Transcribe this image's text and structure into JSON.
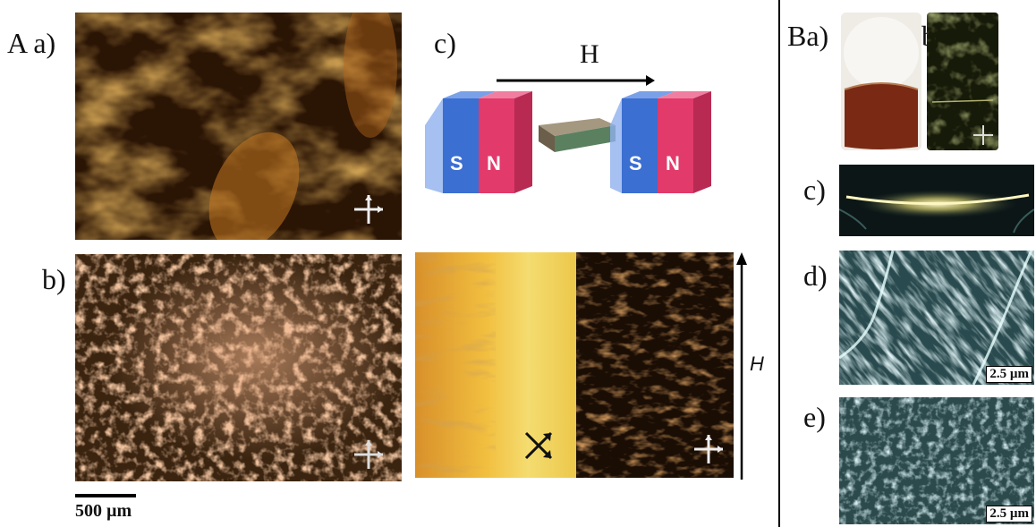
{
  "figure": {
    "group_a_letter": "A",
    "group_b_letter": "B",
    "labels": {
      "aa": "a)",
      "ab": "b)",
      "ac": "c)",
      "ba": "a)",
      "bb": "b)",
      "bc": "c)",
      "bd": "d)",
      "be": "e)"
    },
    "magnet_field_label": "H",
    "magnet_letters": {
      "s": "S",
      "n": "N"
    },
    "field_axis_label": "H",
    "scale_bar_main": "500 µm",
    "scale_bar_d": "2.5 µm",
    "scale_bar_e": "2.5 µm"
  },
  "colors": {
    "magnet_blue": "#3b6fd1",
    "magnet_red": "#e23a6a",
    "orange_texture": "#d98a2a",
    "sem_teal": "#5e8f96"
  },
  "icons": [
    "crossed-polarizers-icon",
    "rotated-polarizers-icon",
    "magnet-icon"
  ]
}
